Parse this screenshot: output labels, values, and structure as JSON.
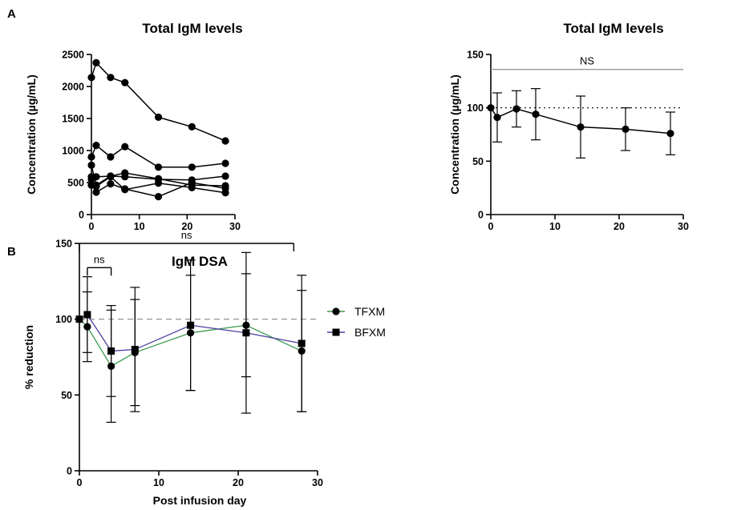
{
  "panels": {
    "a": "A",
    "b": "B"
  },
  "chart_data": [
    {
      "type": "line",
      "title": "Total IgM levels",
      "xlabel": "",
      "ylabel": "Concentration (µg/mL)",
      "xlim": [
        0,
        30
      ],
      "ylim": [
        0,
        2500
      ],
      "xticks": [
        0,
        10,
        20,
        30
      ],
      "yticks": [
        0,
        500,
        1000,
        1500,
        2000,
        2500
      ],
      "x": [
        0,
        1,
        4,
        7,
        14,
        21,
        28
      ],
      "series": [
        {
          "values": [
            2140,
            2370,
            2140,
            2060,
            1520,
            1370,
            1150
          ]
        },
        {
          "values": [
            900,
            1080,
            900,
            1060,
            740,
            740,
            800
          ]
        },
        {
          "values": [
            770,
            460,
            600,
            590,
            550,
            540,
            600
          ]
        },
        {
          "values": [
            590,
            590,
            600,
            650,
            560,
            460,
            450
          ]
        },
        {
          "values": [
            550,
            350,
            480,
            400,
            280,
            500,
            410
          ]
        },
        {
          "values": [
            460,
            440,
            590,
            390,
            490,
            420,
            340
          ]
        }
      ],
      "color": "#000000"
    },
    {
      "type": "line",
      "title": "Total IgM levels",
      "xlabel": "",
      "ylabel": "Concentration (µg/mL)",
      "xlim": [
        0,
        30
      ],
      "ylim": [
        0,
        150
      ],
      "xticks": [
        0,
        10,
        20,
        30
      ],
      "yticks": [
        0,
        50,
        100,
        150
      ],
      "x": [
        0,
        1,
        4,
        7,
        14,
        21,
        28
      ],
      "series": [
        {
          "values": [
            100,
            91,
            99,
            94,
            82,
            80,
            76
          ],
          "error": [
            0,
            23,
            17,
            24,
            29,
            20,
            20
          ]
        }
      ],
      "reference_line": 100,
      "annotations": [
        {
          "text": "NS",
          "y": 136,
          "span": [
            0,
            30
          ]
        }
      ],
      "color": "#000000"
    },
    {
      "type": "line",
      "title": "IgM DSA",
      "xlabel": "Post infusion day",
      "ylabel": "% reduction",
      "xlim": [
        0,
        30
      ],
      "ylim": [
        0,
        150
      ],
      "xticks": [
        0,
        10,
        20,
        30
      ],
      "yticks": [
        0,
        50,
        100,
        150
      ],
      "x": [
        0,
        1,
        4,
        7,
        14,
        21,
        28
      ],
      "series": [
        {
          "name": "TFXM",
          "color": "#3a9a4e",
          "marker": "circle",
          "values": [
            100,
            95,
            69,
            78,
            91,
            96,
            79
          ],
          "error": [
            0,
            23,
            37,
            35,
            38,
            34,
            40
          ]
        },
        {
          "name": "BFXM",
          "color": "#4a3fa0",
          "marker": "square",
          "values": [
            100,
            103,
            79,
            80,
            96,
            91,
            84
          ],
          "error": [
            0,
            25,
            30,
            41,
            43,
            53,
            45
          ]
        }
      ],
      "reference_line": 100,
      "annotations": [
        {
          "text": "ns",
          "y": 134,
          "span": [
            1,
            4
          ]
        },
        {
          "text": "ns",
          "y": 150,
          "span": [
            0,
            27
          ]
        }
      ],
      "legend_position": "right"
    }
  ]
}
